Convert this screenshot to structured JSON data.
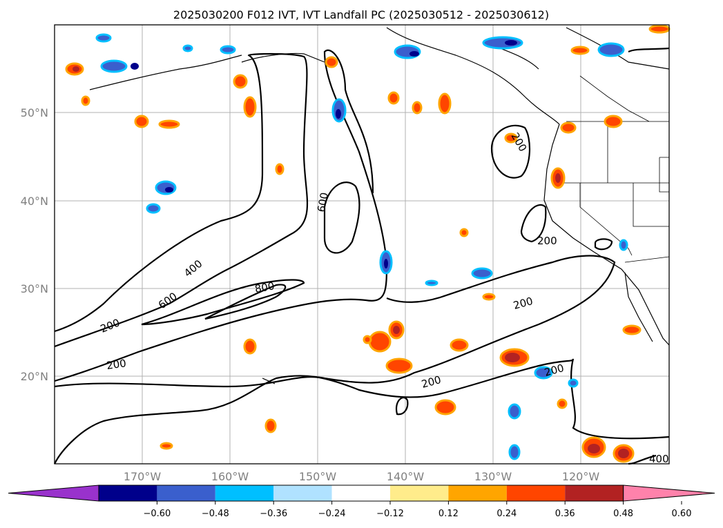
{
  "title": "2025030200 F012 IVT, IVT Landfall PC (2025030512 - 2025030612)",
  "map": {
    "lon_range": [
      -180,
      -110
    ],
    "lat_range": [
      10,
      60
    ],
    "lat_labels": [
      "20°N",
      "30°N",
      "40°N",
      "50°N"
    ],
    "lon_labels": [
      "170°W",
      "160°W",
      "150°W",
      "140°W",
      "130°W",
      "120°W"
    ],
    "gridlines": true,
    "contour_levels_labeled": [
      "200",
      "200",
      "200",
      "200",
      "200",
      "200",
      "200",
      "400",
      "400",
      "600",
      "600",
      "800"
    ]
  },
  "colorbar": {
    "ticks": [
      "−0.60",
      "−0.48",
      "−0.36",
      "−0.24",
      "−0.12",
      "0.12",
      "0.24",
      "0.36",
      "0.48",
      "0.60"
    ],
    "colors": [
      "#9932cc",
      "#00008b",
      "#3a5fcd",
      "#00bfff",
      "#b0e2ff",
      "#ffffff",
      "#ffec8b",
      "#ffa500",
      "#ff4500",
      "#b22222",
      "#ff82ab"
    ],
    "extend": "both"
  }
}
